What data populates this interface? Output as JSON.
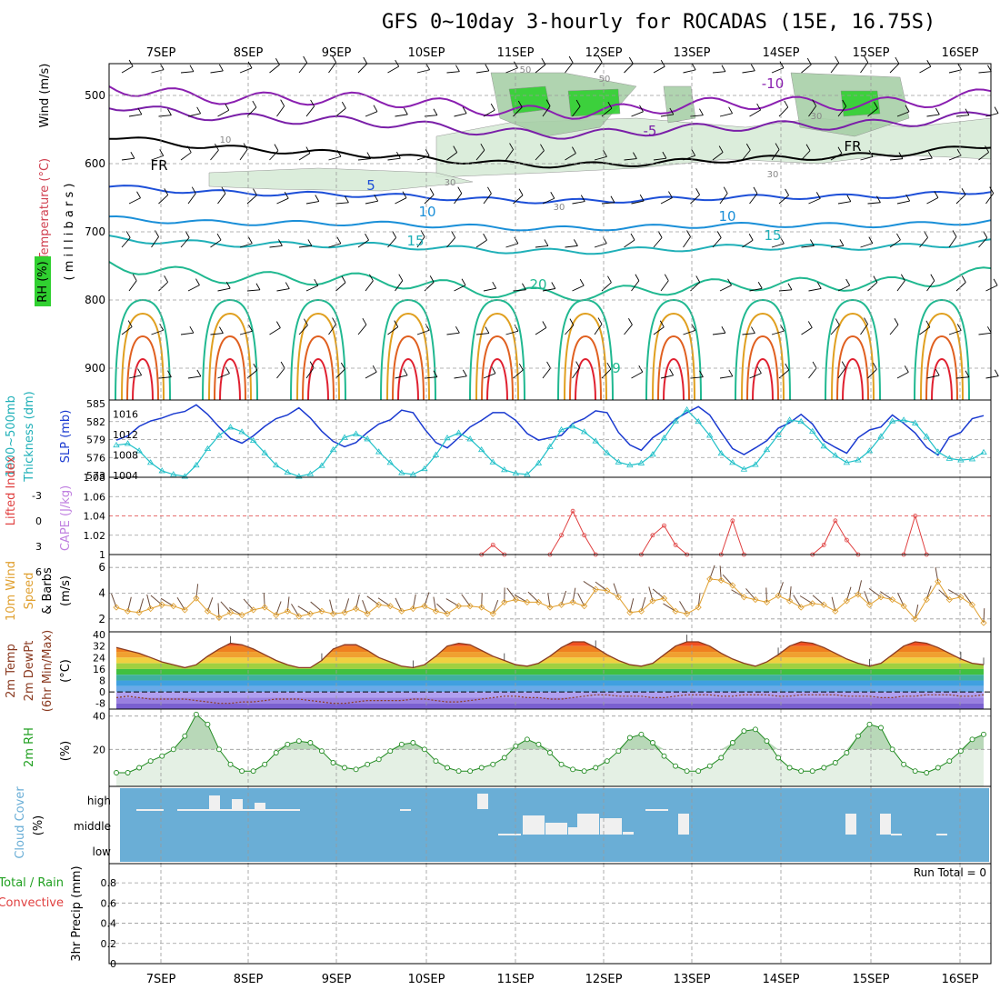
{
  "title": "GFS 0~10day 3-hourly for ROCADAS (15E, 16.75S)",
  "dates": [
    "7SEP",
    "8SEP",
    "9SEP",
    "10SEP",
    "11SEP",
    "12SEP",
    "13SEP",
    "14SEP",
    "15SEP",
    "16SEP"
  ],
  "colors": {
    "wind_barb": "#000000",
    "temp_m10": "#8a1fb0",
    "temp_m5": "#7a1fa8",
    "freezing": "#000000",
    "temp_5": "#1d4fd8",
    "temp_10": "#1a8fd8",
    "temp_15": "#20b0b8",
    "temp_20": "#20b890",
    "temp_25": "#e0a020",
    "temp_30": "#e06020",
    "temp_35": "#e02030",
    "rh_fill_light": "#d8ecd8",
    "rh_fill_mid": "#a8d0a8",
    "rh_fill_high": "#30d030",
    "thickness": "#1a3ad0",
    "slp": "#20c0c8",
    "cape": "#e04040",
    "lifted": "#e04040",
    "wind10": "#e0a030",
    "temp2m": "#8a3a20",
    "rh2m": "#208a20",
    "cloud_bg": "#6aaed6",
    "cloud_bar": "#f0f0f0"
  },
  "panels": {
    "upper": {
      "ylabel_wind": "Wind (m/s)",
      "ylabel_temp": "Temperature (°C)",
      "ylabel_rh": "RH (%)",
      "ylabel_mb": "( m i l l i b a r s )",
      "y_ticks": [
        "500",
        "600",
        "700",
        "800",
        "900"
      ],
      "contour_labels": [
        "-10",
        "-5",
        "FR",
        "FR",
        "5",
        "10",
        "10",
        "15",
        "15",
        "20",
        "30",
        "30",
        "30",
        "50",
        "50",
        "10",
        "30",
        "9"
      ]
    },
    "thickness": {
      "ylabel_a": "1000~500mb",
      "ylabel_b": "Thickness (dm)",
      "ylabel_c": "SLP (mb)",
      "left_ticks": [
        "585",
        "582",
        "579",
        "576",
        "573"
      ],
      "right_ticks": [
        "1016",
        "1012",
        "1008",
        "1004"
      ]
    },
    "lifted": {
      "ylabel_a": "Lifted Index",
      "ylabel_b": "CAPE (J/kg)",
      "left_ticks": [
        "-3",
        "0",
        "3",
        "6"
      ],
      "right_ticks": [
        "1.08",
        "1.06",
        "1.04",
        "1.02",
        "1"
      ]
    },
    "wind10": {
      "ylabel_a": "10m Wind",
      "ylabel_b": "Speed",
      "ylabel_c": "& Barbs",
      "unit": "(m/s)",
      "ticks": [
        "6",
        "4",
        "2"
      ]
    },
    "temp2m": {
      "ylabel_a": "2m Temp",
      "ylabel_b": "2m DewPt",
      "ylabel_c": "(6hr Min/Max)",
      "unit": "(°C)",
      "ticks": [
        "40",
        "32",
        "24",
        "16",
        "8",
        "0",
        "-8"
      ]
    },
    "rh2m": {
      "ylabel": "2m RH",
      "unit": "(%)",
      "ticks": [
        "40",
        "20"
      ]
    },
    "cloud": {
      "ylabel": "Cloud Cover",
      "unit": "(%)",
      "levels": [
        "high",
        "middle",
        "low"
      ]
    },
    "precip": {
      "ylabel_a": "Total / Rain",
      "ylabel_b": "Convective",
      "ylabel_c": "3hr Precip (mm)",
      "ticks": [
        "0.8",
        "0.6",
        "0.4",
        "0.2",
        "0"
      ],
      "run_total": "Run Total = 0"
    }
  },
  "chart_data": [
    {
      "type": "line",
      "title": "1000~500mb Thickness (dm) / SLP (mb)",
      "x_count": 77,
      "series": [
        {
          "name": "Thickness (dm)",
          "values": [
            578.9,
            579.6,
            581.2,
            582.1,
            582.6,
            583.3,
            583.7,
            584.8,
            583.2,
            581.1,
            579.2,
            578.4,
            579.6,
            581.2,
            582.5,
            583.1,
            584.3,
            582.6,
            580.4,
            578.7,
            577.8,
            578.5,
            580.2,
            581.6,
            582.3,
            583.9,
            583.5,
            580.8,
            578.5,
            577.6,
            579.3,
            581.1,
            582.2,
            583.5,
            583.5,
            582.2,
            580.0,
            578.9,
            579.3,
            579.7,
            581.7,
            582.5,
            583.8,
            583.5,
            580.2,
            578.1,
            577.2,
            579.3,
            580.6,
            582.4,
            583.5,
            584.5,
            583.1,
            580.2,
            577.5,
            576.5,
            577.6,
            578.8,
            580.9,
            581.8,
            583.2,
            581.6,
            578.8,
            577.7,
            576.7,
            579.3,
            580.6,
            581.1,
            583.1,
            581.7,
            580.1,
            577.7,
            576.4,
            579.4,
            580.2,
            582.5,
            583.0
          ]
        },
        {
          "name": "SLP (mb)",
          "values": [
            1009.9,
            1010.2,
            1008.8,
            1006.5,
            1004.9,
            1004.2,
            1003.8,
            1006.0,
            1009.2,
            1011.8,
            1013.4,
            1012.5,
            1010.8,
            1008.4,
            1006.0,
            1004.6,
            1003.8,
            1004.3,
            1005.9,
            1009.0,
            1011.4,
            1012.1,
            1011.1,
            1008.6,
            1006.5,
            1004.5,
            1004.2,
            1005.3,
            1008.0,
            1011.3,
            1012.3,
            1011.1,
            1009.0,
            1006.6,
            1005.1,
            1004.4,
            1004.2,
            1006.4,
            1009.6,
            1012.9,
            1013.6,
            1012.5,
            1010.7,
            1008.4,
            1006.6,
            1006.0,
            1006.4,
            1008.1,
            1011.3,
            1014.6,
            1016.8,
            1014.5,
            1011.8,
            1008.3,
            1006.5,
            1005.2,
            1006.1,
            1009.0,
            1011.9,
            1014.8,
            1014.5,
            1012.6,
            1009.7,
            1007.9,
            1006.5,
            1007.0,
            1008.8,
            1011.6,
            1014.6,
            1014.8,
            1014.2,
            1011.6,
            1008.6,
            1007.3,
            1007.0,
            1007.2,
            1008.5
          ]
        }
      ],
      "left_axis": [
        573,
        585
      ],
      "right_axis": [
        1004,
        1018
      ]
    },
    {
      "type": "line",
      "title": "Lifted Index / CAPE (J/kg)",
      "series": [
        {
          "name": "CAPE (J/kg)",
          "points": [
            [
              32,
              1.0
            ],
            [
              33,
              1.01
            ],
            [
              34,
              1.0
            ],
            [
              38,
              1.0
            ],
            [
              39,
              1.02
            ],
            [
              40,
              1.045
            ],
            [
              41,
              1.02
            ],
            [
              42,
              1.0
            ],
            [
              46,
              1.0
            ],
            [
              47,
              1.02
            ],
            [
              48,
              1.03
            ],
            [
              49,
              1.01
            ],
            [
              50,
              1.0
            ],
            [
              53,
              1.0
            ],
            [
              54,
              1.035
            ],
            [
              55,
              1.0
            ],
            [
              61,
              1.0
            ],
            [
              62,
              1.01
            ],
            [
              63,
              1.035
            ],
            [
              64,
              1.015
            ],
            [
              65,
              1.0
            ],
            [
              69,
              1.0
            ],
            [
              70,
              1.04
            ],
            [
              71,
              1.0
            ]
          ]
        }
      ],
      "left_axis": [
        -5,
        6
      ],
      "right_axis": [
        1,
        1.08
      ]
    },
    {
      "type": "line",
      "title": "10m Wind Speed (m/s)",
      "series": [
        {
          "name": "Speed",
          "values": [
            2.9,
            2.6,
            2.5,
            2.8,
            3.1,
            3.0,
            2.7,
            3.6,
            2.6,
            2.1,
            2.5,
            2.3,
            2.7,
            2.9,
            2.3,
            2.6,
            2.2,
            2.4,
            2.6,
            2.4,
            2.5,
            2.8,
            2.4,
            3.1,
            3.0,
            2.6,
            2.8,
            3.0,
            2.6,
            2.4,
            3.0,
            3.0,
            2.9,
            2.4,
            3.3,
            3.5,
            3.3,
            3.3,
            2.9,
            3.1,
            3.3,
            3.0,
            4.3,
            4.2,
            3.7,
            2.5,
            2.6,
            3.4,
            3.6,
            2.6,
            2.4,
            2.9,
            5.1,
            5.0,
            4.6,
            3.7,
            3.5,
            3.3,
            3.8,
            3.4,
            2.9,
            3.2,
            3.1,
            2.6,
            3.4,
            3.9,
            3.1,
            3.7,
            3.5,
            3.0,
            2.0,
            3.5,
            4.9,
            3.5,
            3.7,
            3.1,
            1.7
          ]
        }
      ],
      "y_axis": [
        1,
        7
      ]
    },
    {
      "type": "area",
      "title": "2m Temp / 2m DewPt (°C)",
      "series": [
        {
          "name": "2m Temp",
          "values": [
            31,
            29,
            27,
            24,
            21,
            19,
            17,
            19,
            25,
            30,
            34,
            33,
            30,
            26,
            22,
            19,
            17,
            17,
            22,
            30,
            33,
            33,
            29,
            24,
            21,
            18,
            17,
            19,
            25,
            32,
            34,
            33,
            29,
            25,
            22,
            19,
            18,
            20,
            25,
            31,
            35,
            35,
            31,
            26,
            22,
            19,
            18,
            20,
            26,
            32,
            35,
            35,
            32,
            27,
            23,
            20,
            18,
            21,
            26,
            32,
            35,
            34,
            31,
            27,
            23,
            20,
            18,
            20,
            26,
            32,
            35,
            34,
            31,
            27,
            23,
            20,
            19
          ]
        },
        {
          "name": "2m DewPt",
          "values": [
            -4,
            -3,
            -4,
            -5,
            -5,
            -5,
            -5,
            -6,
            -7,
            -8,
            -8,
            -7,
            -7,
            -6,
            -5,
            -5,
            -5,
            -6,
            -7,
            -8,
            -8,
            -7,
            -6,
            -6,
            -6,
            -6,
            -5,
            -5,
            -6,
            -7,
            -7,
            -6,
            -5,
            -4,
            -3,
            -3,
            -4,
            -4,
            -5,
            -5,
            -4,
            -3,
            -2,
            -2,
            -3,
            -3,
            -3,
            -4,
            -4,
            -3,
            -2,
            -2,
            -2,
            -3,
            -3,
            -2,
            -2,
            -2,
            -3,
            -3,
            -2,
            -2,
            -2,
            -2,
            -3,
            -3,
            -3,
            -4,
            -4,
            -3,
            -3,
            -2,
            -2,
            -2,
            -3,
            -3,
            -2
          ]
        }
      ],
      "y_axis": [
        -12,
        42
      ]
    },
    {
      "type": "area",
      "title": "2m RH (%)",
      "series": [
        {
          "name": "2m RH",
          "values": [
            6,
            6,
            9,
            13,
            16,
            20,
            28,
            41,
            35,
            20,
            11,
            7,
            7,
            11,
            18,
            23,
            25,
            24,
            19,
            12,
            9,
            8,
            11,
            14,
            19,
            23,
            24,
            20,
            13,
            9,
            7,
            7,
            9,
            11,
            15,
            22,
            26,
            23,
            18,
            11,
            8,
            7,
            9,
            13,
            19,
            27,
            29,
            24,
            16,
            10,
            7,
            7,
            10,
            15,
            24,
            31,
            32,
            25,
            15,
            9,
            7,
            7,
            9,
            12,
            18,
            28,
            35,
            33,
            20,
            11,
            7,
            6,
            9,
            13,
            19,
            26,
            29
          ]
        }
      ],
      "y_axis": [
        0,
        42
      ]
    },
    {
      "type": "bar",
      "title": "Cloud Cover (%)",
      "series": [
        {
          "name": "high",
          "values": [
            2,
            2,
            0,
            0,
            4,
            4,
            4,
            12,
            9,
            6,
            6,
            0,
            0,
            0,
            0,
            0,
            0,
            0,
            0,
            0,
            0,
            0,
            0,
            0,
            0,
            0,
            0,
            0,
            0,
            0,
            0,
            0,
            2,
            0,
            0,
            0,
            0,
            0,
            0,
            0,
            0,
            0,
            0,
            0,
            0,
            0,
            0,
            0,
            0,
            0,
            0,
            0,
            0,
            0,
            0,
            0,
            0,
            0,
            0,
            0,
            0,
            0,
            0,
            0,
            0,
            0,
            0,
            0,
            0,
            0,
            0,
            0,
            0,
            0,
            0,
            0,
            0
          ]
        },
        {
          "name": "middle",
          "values": [
            0,
            0,
            0,
            0,
            0,
            0,
            0,
            0,
            0,
            0,
            0,
            0,
            0,
            0,
            0,
            0,
            0,
            0,
            0,
            0,
            0,
            0,
            0,
            0,
            0,
            0,
            0,
            0,
            0,
            0,
            0,
            0,
            0,
            0,
            0,
            0,
            0,
            0,
            0,
            0,
            0,
            0,
            0,
            0,
            0,
            0,
            0,
            0,
            0,
            0,
            0,
            0,
            0,
            0,
            0,
            0,
            0,
            0,
            0,
            0,
            0,
            0,
            0,
            0,
            0,
            0,
            0,
            0,
            0,
            0,
            0,
            0,
            0,
            0,
            0,
            0,
            0
          ]
        }
      ]
    },
    {
      "type": "bar",
      "title": "3hr Precip (mm)",
      "series": [
        {
          "name": "Total / Rain",
          "values": []
        }
      ],
      "y_axis": [
        0,
        1
      ]
    }
  ]
}
